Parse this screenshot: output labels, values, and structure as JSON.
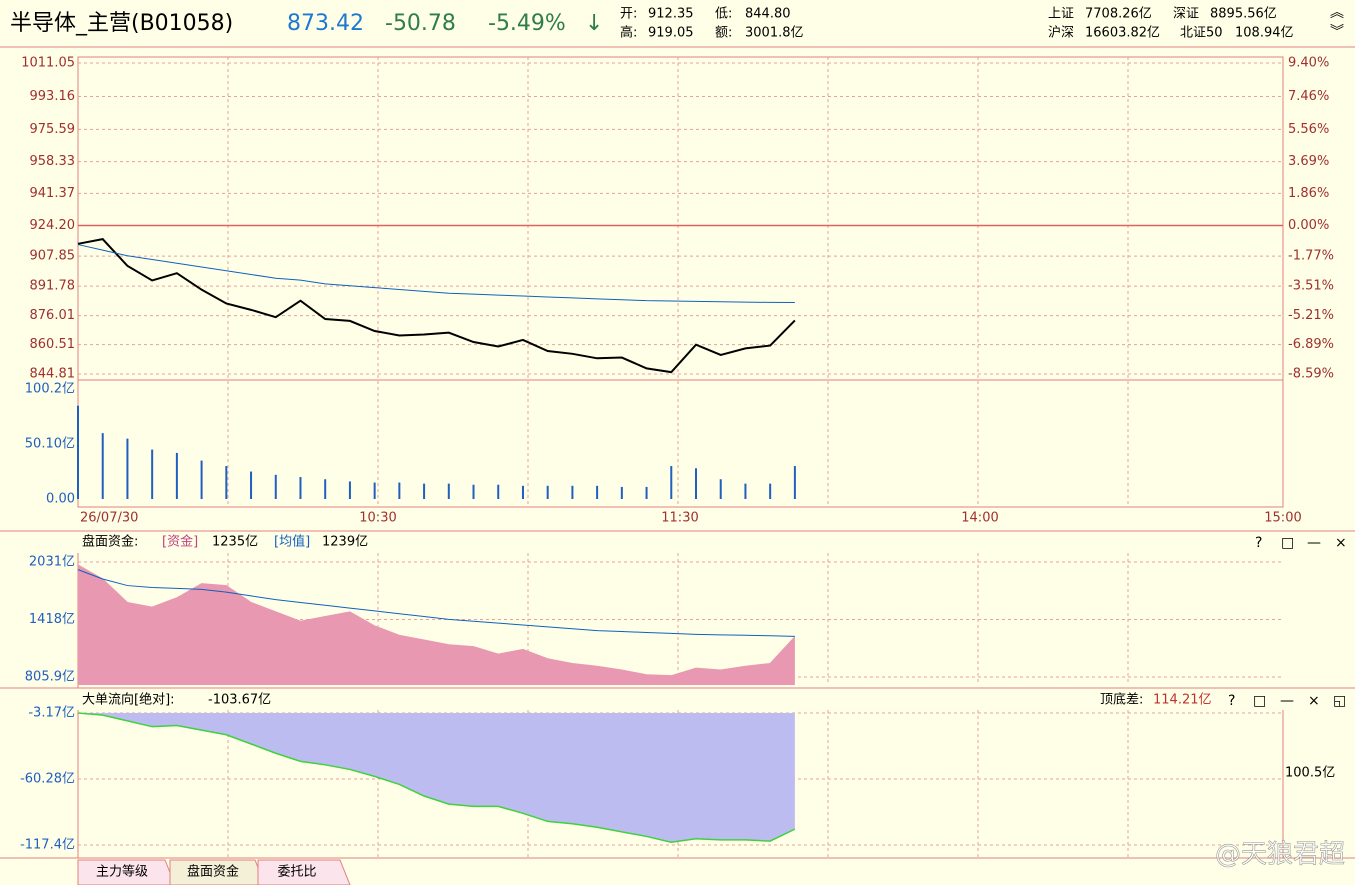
{
  "header": {
    "name": "半导体_主营(B01058)",
    "price": "873.42",
    "change": "-50.78",
    "pct": "-5.49%",
    "arrow": "↓",
    "open_label": "开:",
    "open": "912.35",
    "low_label": "低:",
    "low": "844.80",
    "high_label": "高:",
    "high": "919.05",
    "amount_label": "额:",
    "amount": "3001.8亿",
    "indices": [
      [
        "上证",
        "7708.26亿"
      ],
      [
        "深证",
        "8895.56亿"
      ],
      [
        "沪深",
        "16603.82亿"
      ],
      [
        "北证50",
        "108.94亿"
      ]
    ]
  },
  "price_chart": {
    "type": "line",
    "ylim": [
      844.81,
      1011.05
    ],
    "y2lim": [
      -8.59,
      9.4
    ],
    "yticks": [
      {
        "value": 1011.05,
        "label": "1011.05"
      },
      {
        "value": 993.16,
        "label": "993.16"
      },
      {
        "value": 975.59,
        "label": "975.59"
      },
      {
        "value": 958.33,
        "label": "958.33"
      },
      {
        "value": 941.37,
        "label": "941.37"
      },
      {
        "value": 924.2,
        "label": "924.20"
      },
      {
        "value": 907.85,
        "label": "907.85"
      },
      {
        "value": 891.78,
        "label": "891.78"
      },
      {
        "value": 876.01,
        "label": "876.01"
      },
      {
        "value": 860.51,
        "label": "860.51"
      },
      {
        "value": 844.81,
        "label": "844.81"
      }
    ],
    "y2ticks": [
      {
        "value": 9.4,
        "label": "9.40%"
      },
      {
        "value": 7.46,
        "label": "7.46%"
      },
      {
        "value": 5.56,
        "label": "5.56%"
      },
      {
        "value": 3.69,
        "label": "3.69%"
      },
      {
        "value": 1.86,
        "label": "1.86%"
      },
      {
        "value": 0,
        "label": "0.00%"
      },
      {
        "value": -1.77,
        "label": "-1.77%"
      },
      {
        "value": -3.51,
        "label": "-3.51%"
      },
      {
        "value": -5.21,
        "label": "-5.21%"
      },
      {
        "value": -6.89,
        "label": "-6.89%"
      },
      {
        "value": -8.59,
        "label": "-8.59%"
      }
    ],
    "series": [
      {
        "color": "#000000",
        "values": [
          914.4,
          916.9,
          902.6,
          894.8,
          898.7,
          889.9,
          882.5,
          879.1,
          875.2,
          884.0,
          874.2,
          873.2,
          867.8,
          865.4,
          865.9,
          866.9,
          861.9,
          859.5,
          863.0,
          857.1,
          855.6,
          853.2,
          853.6,
          847.8,
          845.8,
          860.5,
          855.0,
          858.5,
          860.0,
          873.42
        ]
      },
      {
        "color": "#1060c0",
        "values": [
          914,
          911,
          908,
          906,
          904,
          902,
          900,
          898,
          896,
          895,
          893,
          892,
          891,
          890,
          889,
          888,
          887.5,
          887,
          886.5,
          886,
          885.5,
          885,
          884.5,
          884,
          883.8,
          883.6,
          883.4,
          883.2,
          883.1,
          883.0
        ]
      }
    ]
  },
  "volume_chart": {
    "type": "bar",
    "ylim": [
      0,
      100.2
    ],
    "color": "#1f5fbf",
    "yticks": [
      {
        "value": 100.2,
        "label": "100.2亿"
      },
      {
        "value": 50.1,
        "label": "50.10亿"
      },
      {
        "value": 0,
        "label": "0.00"
      }
    ],
    "values": [
      85,
      60,
      55,
      45,
      42,
      35,
      30,
      25,
      22,
      20,
      18,
      16,
      15,
      15,
      14,
      14,
      13,
      13,
      12,
      12,
      12,
      12,
      11,
      11,
      30,
      28,
      18,
      14,
      14,
      30
    ]
  },
  "x_labels": [
    "26/07/30",
    "10:30",
    "11:30",
    "14:00",
    "15:00"
  ],
  "fund_chart": {
    "type": "area",
    "title": "盘面资金:",
    "ylim": [
      805.9,
      2031
    ],
    "legend": [
      {
        "name": "[资金]",
        "value": "1235亿"
      },
      {
        "name": "[均值]",
        "value": "1239亿"
      }
    ],
    "yticks": [
      {
        "value": 2031,
        "label": "2031亿"
      },
      {
        "value": 1418,
        "label": "1418亿"
      },
      {
        "value": 805.9,
        "label": "805.9亿"
      }
    ],
    "series": [
      {
        "color": "#e898b0",
        "values": [
          2000,
          1850,
          1600,
          1550,
          1650,
          1800,
          1780,
          1600,
          1500,
          1400,
          1450,
          1500,
          1350,
          1250,
          1200,
          1150,
          1130,
          1050,
          1100,
          1000,
          950,
          920,
          880,
          830,
          820,
          900,
          880,
          920,
          950,
          1235
        ]
      },
      {
        "color": "#1060c0",
        "values": [
          1950,
          1850,
          1780,
          1760,
          1750,
          1740,
          1710,
          1670,
          1630,
          1600,
          1570,
          1540,
          1510,
          1480,
          1450,
          1420,
          1400,
          1380,
          1360,
          1340,
          1320,
          1300,
          1290,
          1280,
          1270,
          1260,
          1255,
          1250,
          1245,
          1239
        ]
      }
    ]
  },
  "flow_chart": {
    "type": "area",
    "title": "大单流向[绝对]:",
    "value_label": "-103.67亿",
    "diff_label": "顶底差:",
    "diff": "114.21亿",
    "right_label": "100.5亿",
    "ylim": [
      -117.4,
      -3.17
    ],
    "color": "#40d040",
    "fill": "#bcbcf0",
    "yticks": [
      {
        "value": -3.17,
        "label": "-3.17亿"
      },
      {
        "value": -60.28,
        "label": "-60.28亿"
      },
      {
        "value": -117.4,
        "label": "-117.4亿"
      }
    ],
    "values": [
      -3.2,
      -5,
      -10,
      -15,
      -14,
      -18,
      -22,
      -30,
      -38,
      -45,
      -48,
      -52,
      -58,
      -65,
      -75,
      -82,
      -84,
      -84,
      -90,
      -97,
      -99,
      -102,
      -106,
      -110,
      -115,
      -112,
      -113,
      -113,
      -114,
      -103.67
    ]
  },
  "tabs": [
    "主力等级",
    "盘面资金",
    "委托比"
  ],
  "watermark": "@天狼君超"
}
